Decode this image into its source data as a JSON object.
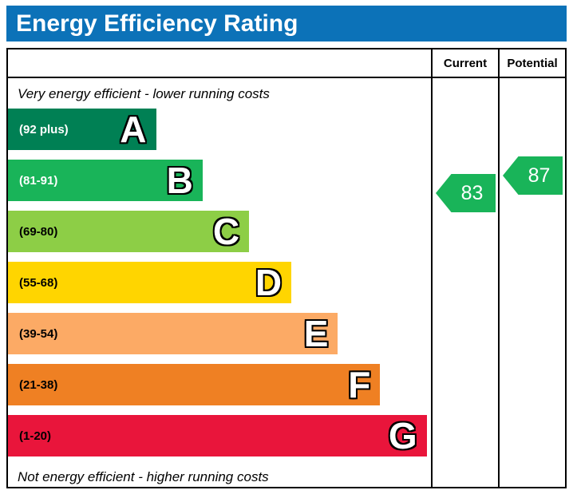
{
  "title": "Energy Efficiency Rating",
  "header": {
    "current": "Current",
    "potential": "Potential"
  },
  "chart_data": {
    "type": "bar",
    "title": "Energy Efficiency Rating",
    "annotations": {
      "top": "Very energy efficient - lower running costs",
      "bottom": "Not energy efficient - higher running costs"
    },
    "bands": [
      {
        "letter": "A",
        "range_label": "(92 plus)",
        "range": [
          92,
          100
        ],
        "color": "#008054",
        "label_color": "#ffffff",
        "width_pct": 35
      },
      {
        "letter": "B",
        "range_label": "(81-91)",
        "range": [
          81,
          91
        ],
        "color": "#19b459",
        "label_color": "#ffffff",
        "width_pct": 46
      },
      {
        "letter": "C",
        "range_label": "(69-80)",
        "range": [
          69,
          80
        ],
        "color": "#8dce46",
        "label_color": "#000000",
        "width_pct": 57
      },
      {
        "letter": "D",
        "range_label": "(55-68)",
        "range": [
          55,
          68
        ],
        "color": "#ffd500",
        "label_color": "#000000",
        "width_pct": 67
      },
      {
        "letter": "E",
        "range_label": "(39-54)",
        "range": [
          39,
          54
        ],
        "color": "#fcaa65",
        "label_color": "#000000",
        "width_pct": 78
      },
      {
        "letter": "F",
        "range_label": "(21-38)",
        "range": [
          21,
          38
        ],
        "color": "#ef8023",
        "label_color": "#000000",
        "width_pct": 88
      },
      {
        "letter": "G",
        "range_label": "(1-20)",
        "range": [
          1,
          20
        ],
        "color": "#e9153b",
        "label_color": "#000000",
        "width_pct": 99
      }
    ],
    "markers": {
      "current": {
        "label": "Current",
        "value": 83,
        "band": "B",
        "color": "#19b459"
      },
      "potential": {
        "label": "Potential",
        "value": 87,
        "band": "B",
        "color": "#19b459"
      }
    }
  }
}
